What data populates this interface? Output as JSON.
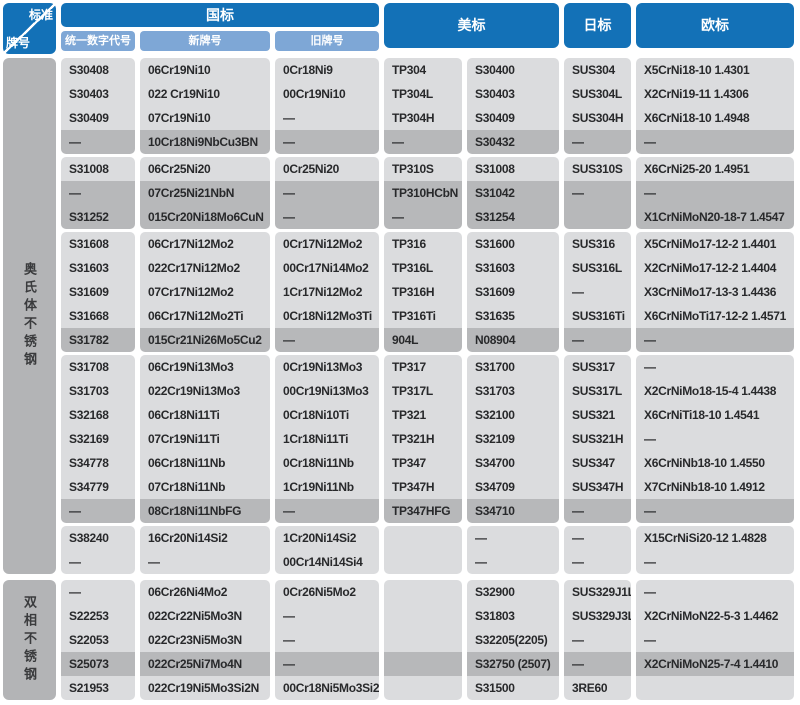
{
  "header": {
    "corner_top": "标准",
    "corner_bottom": "牌号",
    "gb": "国标",
    "gb_subs": [
      "统一数字代号",
      "新牌号",
      "旧牌号"
    ],
    "us": "美标",
    "jp": "日标",
    "eu": "欧标"
  },
  "colors": {
    "header_blue": "#1371B7",
    "subheader_blue": "#7EA7D6",
    "cell_gray": "#DBDCDE",
    "highlight_gray": "#B7B8BA",
    "sidebar_gray": "#B3B4B6"
  },
  "sections": [
    {
      "label": "奥氏体不锈钢",
      "groups": [
        {
          "rows": [
            {
              "cells": [
                "S30408",
                "06Cr19Ni10",
                "0Cr18Ni9",
                "TP304",
                "S30400",
                "SUS304",
                "X5CrNi18-10 1.4301"
              ],
              "highlight": false
            },
            {
              "cells": [
                "S30403",
                "022 Cr19Ni10",
                "00Cr19Ni10",
                "TP304L",
                "S30403",
                "SUS304L",
                "X2CrNi19-11 1.4306"
              ],
              "highlight": false
            },
            {
              "cells": [
                "S30409",
                "07Cr19Ni10",
                "—",
                "TP304H",
                "S30409",
                "SUS304H",
                "X6CrNi18-10 1.4948"
              ],
              "highlight": false
            },
            {
              "cells": [
                "—",
                "10Cr18Ni9NbCu3BN",
                "—",
                "—",
                "S30432",
                "—",
                "—"
              ],
              "highlight": true
            }
          ]
        },
        {
          "rows": [
            {
              "cells": [
                "S31008",
                "06Cr25Ni20",
                "0Cr25Ni20",
                "TP310S",
                "S31008",
                "SUS310S",
                "X6CrNi25-20 1.4951"
              ],
              "highlight": false
            },
            {
              "cells": [
                "—",
                "07Cr25Ni21NbN",
                "—",
                "TP310HCbN",
                "S31042",
                "—",
                "—"
              ],
              "highlight": true
            },
            {
              "cells": [
                "S31252",
                "015Cr20Ni18Mo6CuN",
                "—",
                "—",
                "S31254",
                "",
                "X1CrNiMoN20-18-7 1.4547"
              ],
              "highlight": true
            }
          ]
        },
        {
          "rows": [
            {
              "cells": [
                "S31608",
                "06Cr17Ni12Mo2",
                "0Cr17Ni12Mo2",
                "TP316",
                "S31600",
                "SUS316",
                "X5CrNiMo17-12-2 1.4401"
              ],
              "highlight": false
            },
            {
              "cells": [
                "S31603",
                "022Cr17Ni12Mo2",
                "00Cr17Ni14Mo2",
                "TP316L",
                "S31603",
                "SUS316L",
                "X2CrNiMo17-12-2 1.4404"
              ],
              "highlight": false
            },
            {
              "cells": [
                "S31609",
                "07Cr17Ni12Mo2",
                "1Cr17Ni12Mo2",
                "TP316H",
                "S31609",
                "—",
                "X3CrNiMo17-13-3 1.4436"
              ],
              "highlight": false
            },
            {
              "cells": [
                "S31668",
                "06Cr17Ni12Mo2Ti",
                "0Cr18Ni12Mo3Ti",
                "TP316Ti",
                "S31635",
                "SUS316Ti",
                "X6CrNiMoTi17-12-2 1.4571"
              ],
              "highlight": false
            },
            {
              "cells": [
                "S31782",
                "015Cr21Ni26Mo5Cu2",
                "—",
                "904L",
                "N08904",
                "—",
                "—"
              ],
              "highlight": true
            }
          ]
        },
        {
          "rows": [
            {
              "cells": [
                "S31708",
                "06Cr19Ni13Mo3",
                "0Cr19Ni13Mo3",
                "TP317",
                "S31700",
                "SUS317",
                "—"
              ],
              "highlight": false
            },
            {
              "cells": [
                "S31703",
                "022Cr19Ni13Mo3",
                "00Cr19Ni13Mo3",
                "TP317L",
                "S31703",
                "SUS317L",
                "X2CrNiMo18-15-4 1.4438"
              ],
              "highlight": false
            },
            {
              "cells": [
                "S32168",
                "06Cr18Ni11Ti",
                "0Cr18Ni10Ti",
                "TP321",
                "S32100",
                "SUS321",
                "X6CrNiTi18-10 1.4541"
              ],
              "highlight": false
            },
            {
              "cells": [
                "S32169",
                "07Cr19Ni11Ti",
                "1Cr18Ni11Ti",
                "TP321H",
                "S32109",
                "SUS321H",
                "—"
              ],
              "highlight": false
            },
            {
              "cells": [
                "S34778",
                "06Cr18Ni11Nb",
                "0Cr18Ni11Nb",
                "TP347",
                "S34700",
                "SUS347",
                "X6CrNiNb18-10 1.4550"
              ],
              "highlight": false
            },
            {
              "cells": [
                "S34779",
                "07Cr18Ni11Nb",
                "1Cr19Ni11Nb",
                "TP347H",
                "S34709",
                "SUS347H",
                "X7CrNiNb18-10 1.4912"
              ],
              "highlight": false
            },
            {
              "cells": [
                "—",
                "08Cr18Ni11NbFG",
                "—",
                "TP347HFG",
                "S34710",
                "—",
                "—"
              ],
              "highlight": true
            }
          ]
        },
        {
          "rows": [
            {
              "cells": [
                "S38240",
                "16Cr20Ni14Si2",
                "1Cr20Ni14Si2",
                "",
                "—",
                "—",
                "X15CrNiSi20-12 1.4828"
              ],
              "highlight": false
            },
            {
              "cells": [
                "—",
                "—",
                "00Cr14Ni14Si4",
                "",
                "—",
                "—",
                "—"
              ],
              "highlight": false
            }
          ]
        }
      ]
    },
    {
      "label": "双相不锈钢",
      "groups": [
        {
          "rows": [
            {
              "cells": [
                "—",
                "06Cr26Ni4Mo2",
                "0Cr26Ni5Mo2",
                "",
                "S32900",
                "SUS329J1L",
                "—"
              ],
              "highlight": false
            },
            {
              "cells": [
                "S22253",
                "022Cr22Ni5Mo3N",
                "—",
                "",
                "S31803",
                "SUS329J3L",
                "X2CrNiMoN22-5-3 1.4462"
              ],
              "highlight": false
            },
            {
              "cells": [
                "S22053",
                "022Cr23Ni5Mo3N",
                "—",
                "",
                "S32205(2205)",
                "—",
                "—"
              ],
              "highlight": false
            },
            {
              "cells": [
                "S25073",
                "022Cr25Ni7Mo4N",
                "—",
                "",
                "S32750 (2507)",
                "—",
                "X2CrNiMoN25-7-4 1.4410"
              ],
              "highlight": true
            },
            {
              "cells": [
                "S21953",
                "022Cr19Ni5Mo3Si2N",
                "00Cr18Ni5Mo3Si2",
                "",
                "S31500",
                "3RE60",
                ""
              ],
              "highlight": false
            }
          ]
        }
      ]
    }
  ]
}
